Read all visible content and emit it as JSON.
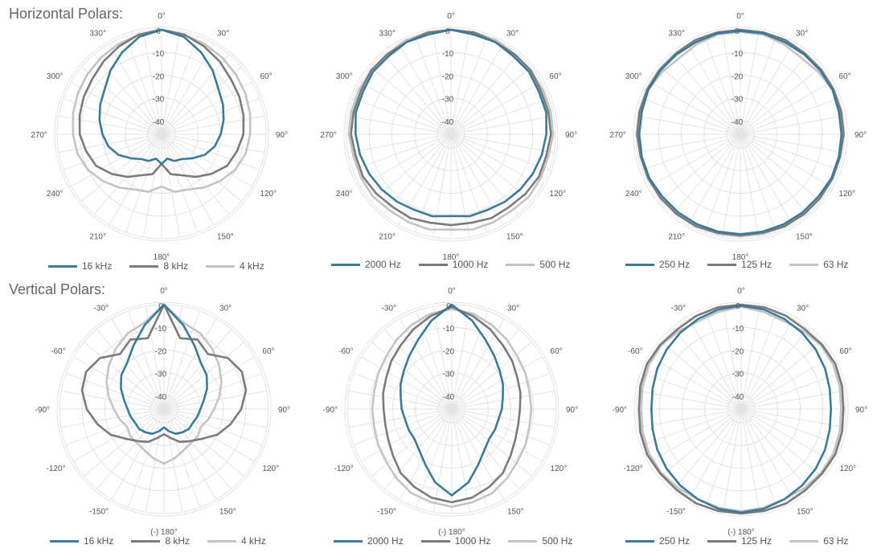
{
  "sections": {
    "horizontal_title": "Horizontal Polars:",
    "vertical_title": "Vertical Polars:"
  },
  "colors": {
    "series1": "#3a7b9b",
    "series2": "#7b7b7b",
    "series3": "#c4c4c4",
    "grid": "#e3e3e3"
  },
  "chart_data": [
    {
      "type": "polar",
      "group": "Horizontal Polars",
      "rlim": [
        -45,
        0
      ],
      "rings": [
        "0",
        "-10",
        "-20",
        "-30",
        "-40"
      ],
      "angle_labels": [
        "0°",
        "30°",
        "60°",
        "90°",
        "120°",
        "150°",
        "180°",
        "210°",
        "240°",
        "270°",
        "300°",
        "330°"
      ],
      "angles": [
        0,
        30,
        60,
        90,
        120,
        150,
        180,
        210,
        240,
        270,
        300,
        330
      ],
      "series": [
        {
          "name": "16 kHz",
          "values": [
            0,
            -2,
            -6,
            -10,
            -14,
            -16,
            -18,
            -20,
            -22,
            -25,
            -29,
            -32,
            -33,
            -35,
            -33,
            -35,
            -33,
            -32,
            -29,
            -25,
            -22,
            -20,
            -18,
            -16,
            -14,
            -10,
            -6,
            -2
          ]
        },
        {
          "name": "8 kHz",
          "values": [
            0,
            -1,
            -3,
            -5,
            -7,
            -8,
            -9,
            -10,
            -12,
            -14,
            -18,
            -22,
            -26,
            -28,
            -33,
            -28,
            -26,
            -22,
            -18,
            -14,
            -12,
            -10,
            -9,
            -8,
            -7,
            -5,
            -3,
            -1
          ]
        },
        {
          "name": "4 kHz",
          "values": [
            0,
            -1,
            -2,
            -3,
            -4,
            -5,
            -6,
            -7,
            -8,
            -10,
            -13,
            -16,
            -19,
            -20,
            -23,
            -20,
            -19,
            -16,
            -13,
            -10,
            -8,
            -7,
            -6,
            -5,
            -4,
            -3,
            -2,
            -1
          ]
        }
      ]
    },
    {
      "type": "polar",
      "group": "Horizontal Polars",
      "rlim": [
        -45,
        0
      ],
      "rings": [
        "0",
        "-10",
        "-20",
        "-30",
        "-40"
      ],
      "angle_labels": [
        "0°",
        "30°",
        "60°",
        "90°",
        "120°",
        "150°",
        "180°",
        "210°",
        "240°",
        "270°",
        "300°",
        "330°"
      ],
      "angles": [
        0,
        30,
        60,
        90,
        120,
        150,
        180,
        210,
        240,
        270,
        300,
        330
      ],
      "series": [
        {
          "name": "2000 Hz",
          "values": [
            0,
            -1,
            -1,
            -2,
            -2,
            -3,
            -3,
            -4,
            -5,
            -6,
            -7,
            -8,
            -9,
            -9,
            -10,
            -9,
            -9,
            -8,
            -7,
            -6,
            -5,
            -4,
            -3,
            -3,
            -2,
            -2,
            -1,
            -1
          ]
        },
        {
          "name": "1000 Hz",
          "values": [
            0,
            0,
            -1,
            -1,
            -1,
            -2,
            -2,
            -2,
            -3,
            -3,
            -4,
            -5,
            -5,
            -6,
            -6,
            -6,
            -5,
            -5,
            -4,
            -3,
            -3,
            -2,
            -2,
            -2,
            -1,
            -1,
            -1,
            0
          ]
        },
        {
          "name": "500 Hz",
          "values": [
            0,
            0,
            0,
            -1,
            -1,
            -1,
            -1,
            -1,
            -2,
            -2,
            -2,
            -3,
            -3,
            -3,
            -4,
            -3,
            -3,
            -3,
            -2,
            -2,
            -2,
            -1,
            -1,
            -1,
            -1,
            -1,
            0,
            0
          ]
        }
      ]
    },
    {
      "type": "polar",
      "group": "Horizontal Polars",
      "rlim": [
        -45,
        0
      ],
      "rings": [
        "0",
        "-10",
        "-20",
        "-30",
        "-40"
      ],
      "angle_labels": [
        "0°",
        "30°",
        "60°",
        "90°",
        "120°",
        "150°",
        "180°",
        "210°",
        "240°",
        "270°",
        "300°",
        "330°"
      ],
      "angles": [
        0,
        30,
        60,
        90,
        120,
        150,
        180,
        210,
        240,
        270,
        300,
        330
      ],
      "series": [
        {
          "name": "250 Hz",
          "values": [
            -0.5,
            -0.5,
            -1,
            -1,
            -1,
            -1,
            -1.5,
            -1.5,
            -1.5,
            -1.5,
            -2,
            -2,
            -2,
            -2,
            -2,
            -2,
            -2,
            -2,
            -2,
            -1.5,
            -1.5,
            -1.5,
            -1.5,
            -1,
            -1,
            -1,
            -1,
            -0.5
          ]
        },
        {
          "name": "125 Hz",
          "values": [
            0,
            0,
            0,
            -0.5,
            -0.5,
            -0.5,
            -0.5,
            -0.5,
            -1,
            -1,
            -1,
            -1,
            -1,
            -1.5,
            -1.5,
            -1.5,
            -1,
            -1,
            -1,
            -1,
            -1,
            -0.5,
            -0.5,
            -0.5,
            -0.5,
            -0.5,
            0,
            0
          ]
        },
        {
          "name": "63 Hz",
          "values": [
            -1,
            -1,
            -2,
            -3,
            -2,
            -1,
            -1,
            -1,
            -1,
            -1,
            -2,
            -2,
            -1,
            -1,
            -1,
            -1,
            -1,
            -1,
            -1,
            -1,
            -1,
            -1,
            -1,
            -1,
            -2,
            -3,
            -2,
            -1
          ]
        }
      ]
    },
    {
      "type": "polar",
      "group": "Vertical Polars",
      "rlim": [
        -45,
        0
      ],
      "rings": [
        "0",
        "-10",
        "-20",
        "-30",
        "-40"
      ],
      "angle_labels": [
        "0°",
        "30°",
        "60°",
        "90°",
        "120°",
        "150°",
        "(-) 180°",
        "-150°",
        "-120°",
        "-90°",
        "-60°",
        "-30°"
      ],
      "angles": [
        0,
        30,
        60,
        90,
        120,
        150,
        180,
        -150,
        -120,
        -90,
        -60,
        -30
      ],
      "series": [
        {
          "name": "16 kHz",
          "values": [
            0,
            -8,
            -15,
            -20,
            -22,
            -25,
            -28,
            -30,
            -31,
            -32,
            -32,
            -33,
            -34,
            -36,
            -38,
            -36,
            -34,
            -33,
            -32,
            -32,
            -31,
            -30,
            -28,
            -25,
            -22,
            -20,
            -15,
            -8
          ]
        },
        {
          "name": "8 kHz",
          "values": [
            0,
            -14,
            -12,
            -15,
            -10,
            -8,
            -9,
            -12,
            -16,
            -20,
            -25,
            -28,
            -30,
            -33,
            -35,
            -33,
            -30,
            -28,
            -25,
            -20,
            -16,
            -12,
            -9,
            -8,
            -10,
            -15,
            -12,
            -14
          ]
        },
        {
          "name": "4 kHz",
          "values": [
            0,
            -7,
            -9,
            -12,
            -15,
            -18,
            -21,
            -24,
            -26,
            -28,
            -27,
            -27,
            -26,
            -24,
            -22,
            -24,
            -26,
            -27,
            -27,
            -28,
            -26,
            -24,
            -21,
            -18,
            -15,
            -12,
            -9,
            -7
          ]
        }
      ]
    },
    {
      "type": "polar",
      "group": "Vertical Polars",
      "rlim": [
        -45,
        0
      ],
      "rings": [
        "0",
        "-10",
        "-20",
        "-30",
        "-40"
      ],
      "angle_labels": [
        "0°",
        "30°",
        "60°",
        "90°",
        "120°",
        "150°",
        "(-) 180°",
        "-150°",
        "-120°",
        "-90°",
        "-60°",
        "-30°"
      ],
      "angles": [
        0,
        30,
        60,
        90,
        120,
        150,
        180,
        -150,
        -120,
        -90,
        -60,
        -30
      ],
      "series": [
        {
          "name": "2000 Hz",
          "values": [
            0,
            -6,
            -12,
            -16,
            -19,
            -21,
            -23,
            -24,
            -25,
            -25,
            -25,
            -23,
            -19,
            -13,
            -8,
            -13,
            -19,
            -23,
            -25,
            -25,
            -25,
            -24,
            -23,
            -21,
            -19,
            -16,
            -12,
            -6
          ]
        },
        {
          "name": "1000 Hz",
          "values": [
            -1,
            -4,
            -7,
            -10,
            -12,
            -14,
            -15,
            -16,
            -16,
            -15,
            -13,
            -10,
            -8,
            -6,
            -5,
            -6,
            -8,
            -10,
            -13,
            -15,
            -16,
            -16,
            -15,
            -14,
            -12,
            -10,
            -7,
            -4
          ]
        },
        {
          "name": "500 Hz",
          "values": [
            -2,
            -3,
            -5,
            -7,
            -9,
            -10,
            -11,
            -11,
            -11,
            -10,
            -9,
            -7,
            -5,
            -4,
            -3,
            -4,
            -5,
            -7,
            -9,
            -10,
            -11,
            -11,
            -11,
            -10,
            -9,
            -7,
            -5,
            -3
          ]
        }
      ]
    },
    {
      "type": "polar",
      "group": "Vertical Polars",
      "rlim": [
        -45,
        0
      ],
      "rings": [
        "0",
        "-10",
        "-20",
        "-30",
        "-40"
      ],
      "angle_labels": [
        "0°",
        "30°",
        "60°",
        "90°",
        "120°",
        "150°",
        "(-) 180°",
        "-150°",
        "-120°",
        "-90°",
        "-60°",
        "-30°"
      ],
      "angles": [
        0,
        30,
        60,
        90,
        120,
        150,
        180,
        -150,
        -120,
        -90,
        -60,
        -30
      ],
      "series": [
        {
          "name": "250 Hz",
          "values": [
            -0.5,
            -1,
            -2,
            -3,
            -4,
            -5,
            -6,
            -6.5,
            -6,
            -5,
            -4,
            -3,
            -2,
            -1,
            -0.5,
            -1,
            -2,
            -3,
            -4,
            -5,
            -6,
            -6.5,
            -6,
            -5,
            -4,
            -3,
            -2,
            -1
          ]
        },
        {
          "name": "125 Hz",
          "values": [
            0,
            0,
            -0.5,
            -1,
            -0.5,
            0,
            -0.5,
            -1,
            -0.5,
            0,
            -0.5,
            -0.5,
            0,
            0,
            0,
            0,
            0,
            -0.5,
            -0.5,
            0,
            -0.5,
            -1,
            -0.5,
            0,
            -0.5,
            -1,
            -0.5,
            0
          ]
        },
        {
          "name": "63 Hz",
          "values": [
            -1,
            -2,
            -3,
            -2,
            -1,
            -1,
            -1.5,
            -2,
            -1.5,
            -1,
            -1,
            -1.5,
            -2,
            -1.5,
            -1,
            -1.5,
            -2,
            -1.5,
            -1,
            -1,
            -1.5,
            -2,
            -1.5,
            -1,
            -1,
            -2,
            -3,
            -2
          ]
        }
      ]
    }
  ]
}
